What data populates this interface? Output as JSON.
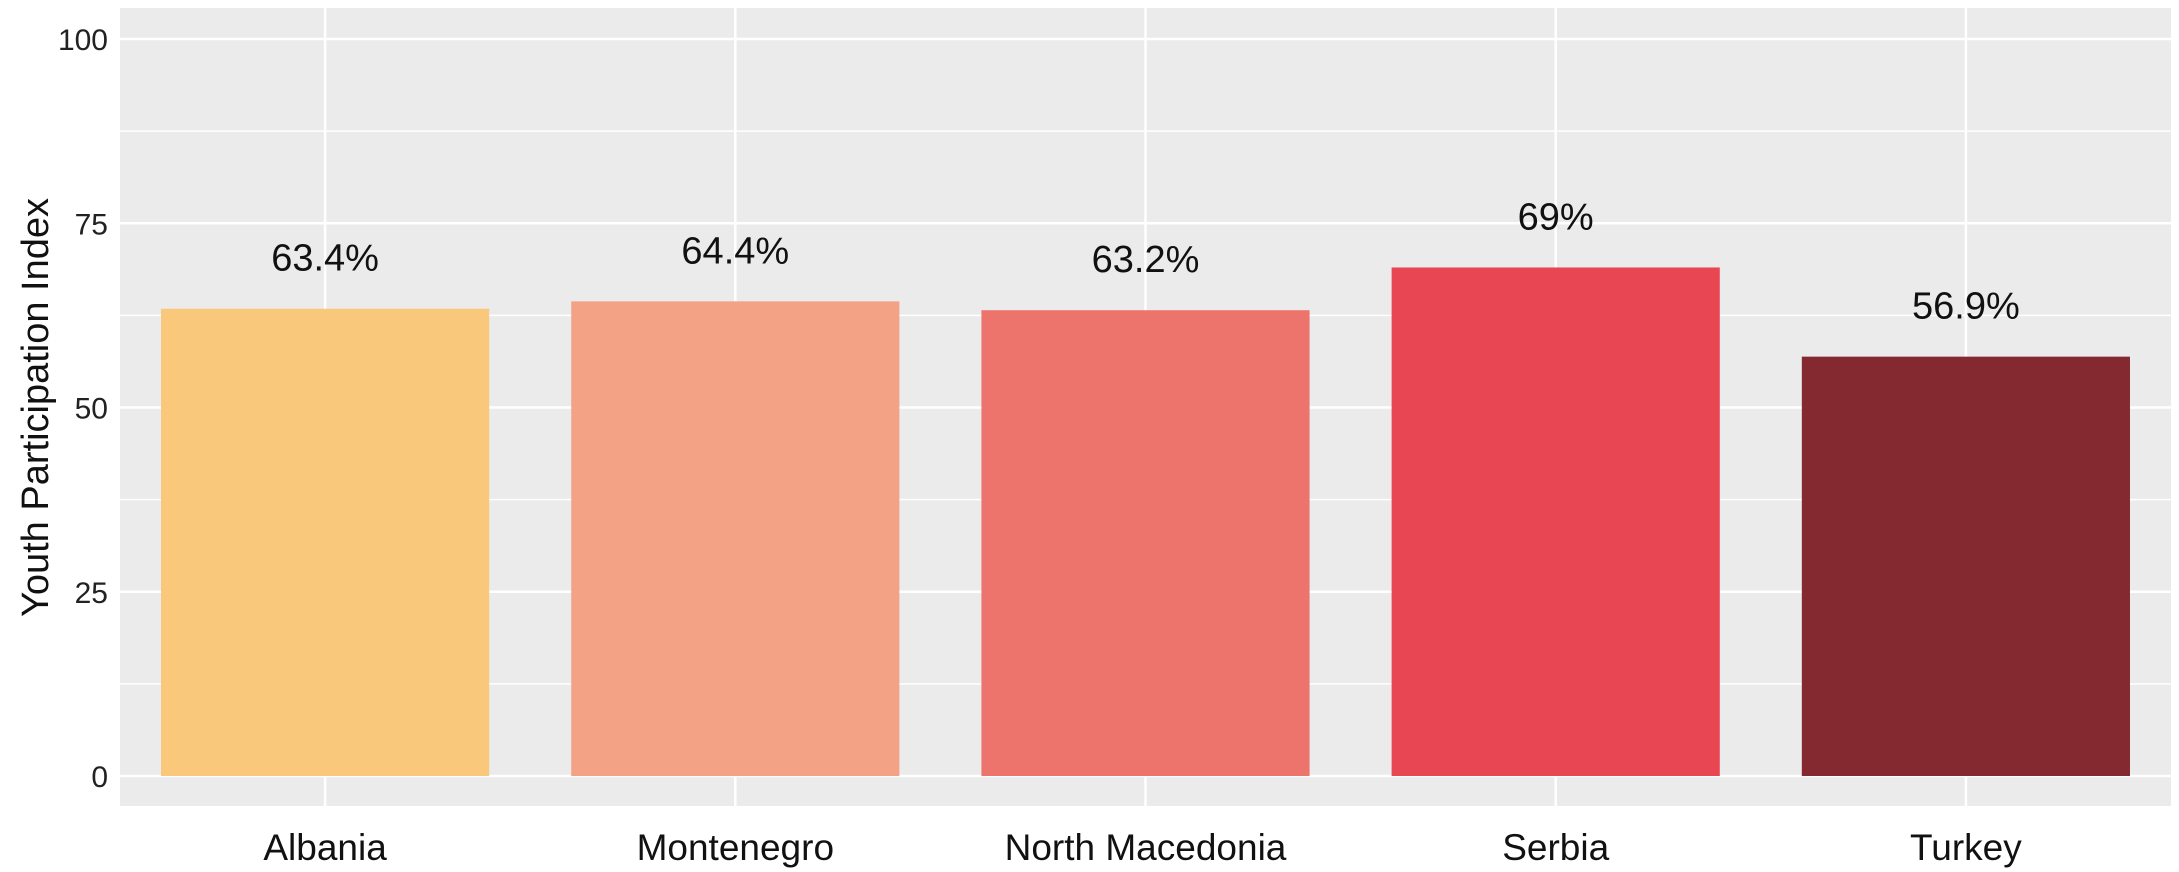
{
  "chart_data": {
    "type": "bar",
    "title": "",
    "xlabel": "",
    "ylabel": "Youth Participation Index",
    "ylim": [
      0,
      100
    ],
    "yticks": [
      0,
      25,
      50,
      75,
      100
    ],
    "grid": true,
    "legend": "none",
    "categories": [
      "Albania",
      "Montenegro",
      "North Macedonia",
      "Serbia",
      "Turkey"
    ],
    "values": [
      63.4,
      64.4,
      63.2,
      69,
      56.9
    ],
    "data_labels": [
      "63.4%",
      "64.4%",
      "63.2%",
      "69%",
      "56.9%"
    ],
    "colors": [
      "#FAC87B",
      "#F3A286",
      "#ED746C",
      "#E84653",
      "#842930"
    ],
    "panel_background": "#EBEBEB",
    "gridline_color": "#FFFFFF"
  }
}
